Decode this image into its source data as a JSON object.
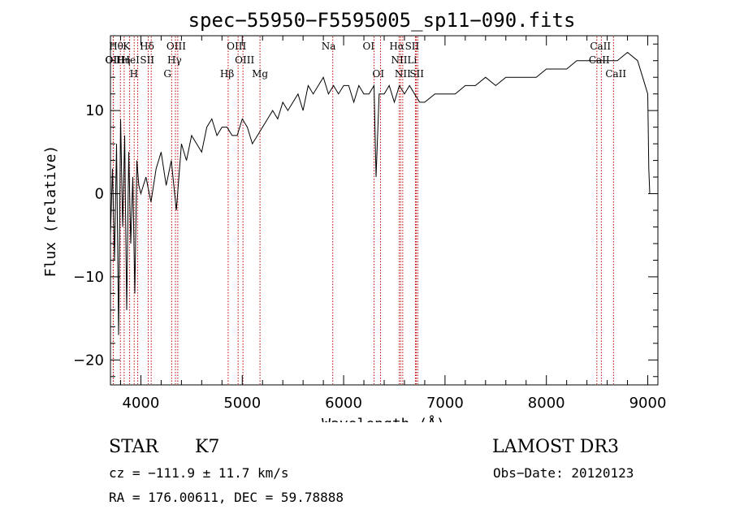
{
  "chart_data": {
    "type": "line",
    "title": "spec−55950−F5595005_sp11−090.fits",
    "xlabel": "Wavelength (Å)",
    "ylabel": "Flux (relative)",
    "xlim": [
      3700,
      9100
    ],
    "ylim": [
      -23,
      19
    ],
    "xticks": [
      4000,
      5000,
      6000,
      7000,
      8000,
      9000
    ],
    "yticks": [
      -20,
      -10,
      0,
      10
    ],
    "ytick_labels": [
      "−20",
      "−10",
      "0",
      "10"
    ],
    "line_color": "#000000",
    "marker_color": "#c00000",
    "series": [
      {
        "name": "flux",
        "x": [
          3700,
          3720,
          3740,
          3760,
          3780,
          3800,
          3820,
          3840,
          3860,
          3880,
          3900,
          3920,
          3940,
          3960,
          3980,
          4000,
          4050,
          4100,
          4150,
          4200,
          4250,
          4300,
          4350,
          4400,
          4450,
          4500,
          4550,
          4600,
          4650,
          4700,
          4750,
          4800,
          4850,
          4900,
          4950,
          5000,
          5050,
          5100,
          5150,
          5200,
          5250,
          5300,
          5350,
          5400,
          5450,
          5500,
          5550,
          5600,
          5650,
          5700,
          5750,
          5800,
          5850,
          5900,
          5950,
          6000,
          6050,
          6100,
          6150,
          6200,
          6250,
          6300,
          6320,
          6350,
          6400,
          6450,
          6500,
          6550,
          6600,
          6650,
          6700,
          6750,
          6800,
          6900,
          7000,
          7100,
          7200,
          7300,
          7400,
          7500,
          7600,
          7700,
          7800,
          7900,
          8000,
          8100,
          8200,
          8300,
          8400,
          8500,
          8600,
          8700,
          8800,
          8900,
          8950,
          9000,
          9010,
          9020
        ],
        "y": [
          -5,
          3,
          -8,
          6,
          -17,
          9,
          -4,
          7,
          -14,
          5,
          -6,
          2,
          -12,
          4,
          1,
          0,
          2,
          -1,
          3,
          5,
          1,
          4,
          -2,
          6,
          4,
          7,
          6,
          5,
          8,
          9,
          7,
          8,
          8,
          7,
          7,
          9,
          8,
          6,
          7,
          8,
          9,
          10,
          9,
          11,
          10,
          11,
          12,
          10,
          13,
          12,
          13,
          14,
          12,
          13,
          12,
          13,
          13,
          11,
          13,
          12,
          12,
          13,
          2,
          12,
          12,
          13,
          11,
          13,
          12,
          13,
          12,
          11,
          11,
          12,
          12,
          12,
          13,
          13,
          14,
          13,
          14,
          14,
          14,
          14,
          15,
          15,
          15,
          16,
          16,
          16,
          16,
          16,
          17,
          16,
          14,
          12,
          3,
          0
        ]
      }
    ],
    "lines": [
      {
        "label": "Hθ",
        "wave": 3798
      },
      {
        "label": "K",
        "wave": 3934
      },
      {
        "label": "Hδ",
        "wave": 4102
      },
      {
        "label": "OIII",
        "wave": 4364
      },
      {
        "label": "OIII",
        "wave": 4959
      },
      {
        "label": "Na",
        "wave": 5893
      },
      {
        "label": "OI",
        "wave": 6300
      },
      {
        "label": "Hα",
        "wave": 6563
      },
      {
        "label": "SII",
        "wave": 6717
      },
      {
        "label": "CaII",
        "wave": 8542
      },
      {
        "label": "OII",
        "wave": 3727
      },
      {
        "label": "HeI",
        "wave": 3889
      },
      {
        "label": "SII",
        "wave": 4072
      },
      {
        "label": "Hγ",
        "wave": 4341
      },
      {
        "label": "OIII",
        "wave": 5007
      },
      {
        "label": "NII",
        "wave": 6548
      },
      {
        "label": "Li",
        "wave": 6708
      },
      {
        "label": "CaII",
        "wave": 8498
      },
      {
        "label": "OII",
        "wave": 3729
      },
      {
        "label": "Hη",
        "wave": 3835
      },
      {
        "label": "H",
        "wave": 3969
      },
      {
        "label": "G",
        "wave": 4304
      },
      {
        "label": "Hβ",
        "wave": 4861
      },
      {
        "label": "Mg",
        "wave": 5175
      },
      {
        "label": "OI",
        "wave": 6364
      },
      {
        "label": "NII",
        "wave": 6583
      },
      {
        "label": "SII",
        "wave": 6731
      },
      {
        "label": "CaII",
        "wave": 8662
      }
    ]
  },
  "info": {
    "class": "STAR",
    "subclass": "K7",
    "survey": "LAMOST DR3",
    "cz": "cz = −111.9 ± 11.7 km/s",
    "obs_date": "Obs−Date: 20120123",
    "radec": "RA = 176.00611, DEC =  59.78888"
  }
}
